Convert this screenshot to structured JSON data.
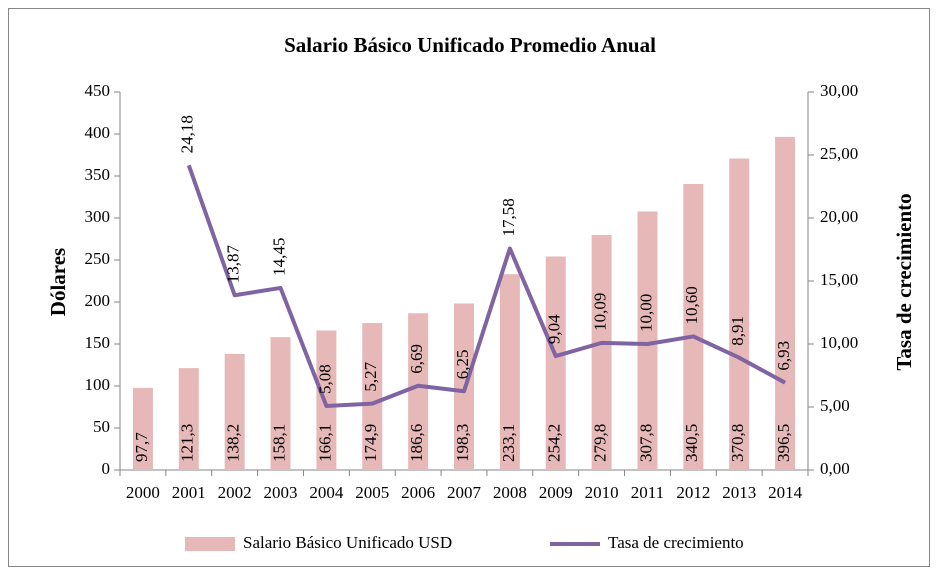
{
  "chart_data": {
    "type": "bar",
    "title": "Salario Básico Unificado Promedio Anual",
    "ylabel": "Dólares",
    "y2label": "Tasa de crecimiento",
    "categories": [
      "2000",
      "2001",
      "2002",
      "2003",
      "2004",
      "2005",
      "2006",
      "2007",
      "2008",
      "2009",
      "2010",
      "2011",
      "2012",
      "2013",
      "2014"
    ],
    "series": [
      {
        "name": "Salario Básico Unificado USD",
        "type": "bar",
        "color": "#e6b9b8",
        "values": [
          97.7,
          121.3,
          138.2,
          158.1,
          166.1,
          174.9,
          186.6,
          198.3,
          233.1,
          254.2,
          279.8,
          307.8,
          340.5,
          370.8,
          396.5
        ],
        "value_labels": [
          "97,7",
          "121,3",
          "138,2",
          "158,1",
          "166,1",
          "174,9",
          "186,6",
          "198,3",
          "233,1",
          "254,2",
          "279,8",
          "307,8",
          "340,5",
          "370,8",
          "396,5"
        ]
      },
      {
        "name": "Tasa de crecimiento",
        "type": "line",
        "axis": "y2",
        "color": "#8064a2",
        "values": [
          null,
          24.18,
          13.87,
          14.45,
          5.08,
          5.27,
          6.69,
          6.25,
          17.58,
          9.04,
          10.09,
          10.0,
          10.6,
          8.91,
          6.93
        ],
        "value_labels": [
          null,
          "24,18",
          "13,87",
          "14,45",
          "5,08",
          "5,27",
          "6,69",
          "6,25",
          "17,58",
          "9,04",
          "10,09",
          "10,00",
          "10,60",
          "8,91",
          "6,93"
        ]
      }
    ],
    "ylim": [
      0,
      450
    ],
    "yticks": [
      0,
      50,
      100,
      150,
      200,
      250,
      300,
      350,
      400,
      450
    ],
    "y2lim": [
      0,
      30
    ],
    "y2ticks": [
      {
        "value": 0,
        "label": "0,00"
      },
      {
        "value": 5,
        "label": "5,00"
      },
      {
        "value": 10,
        "label": "10,00"
      },
      {
        "value": 15,
        "label": "15,00"
      },
      {
        "value": 20,
        "label": "20,00"
      },
      {
        "value": 25,
        "label": "25,00"
      },
      {
        "value": 30,
        "label": "30,00"
      }
    ],
    "legend": "bottom",
    "grid": false
  }
}
